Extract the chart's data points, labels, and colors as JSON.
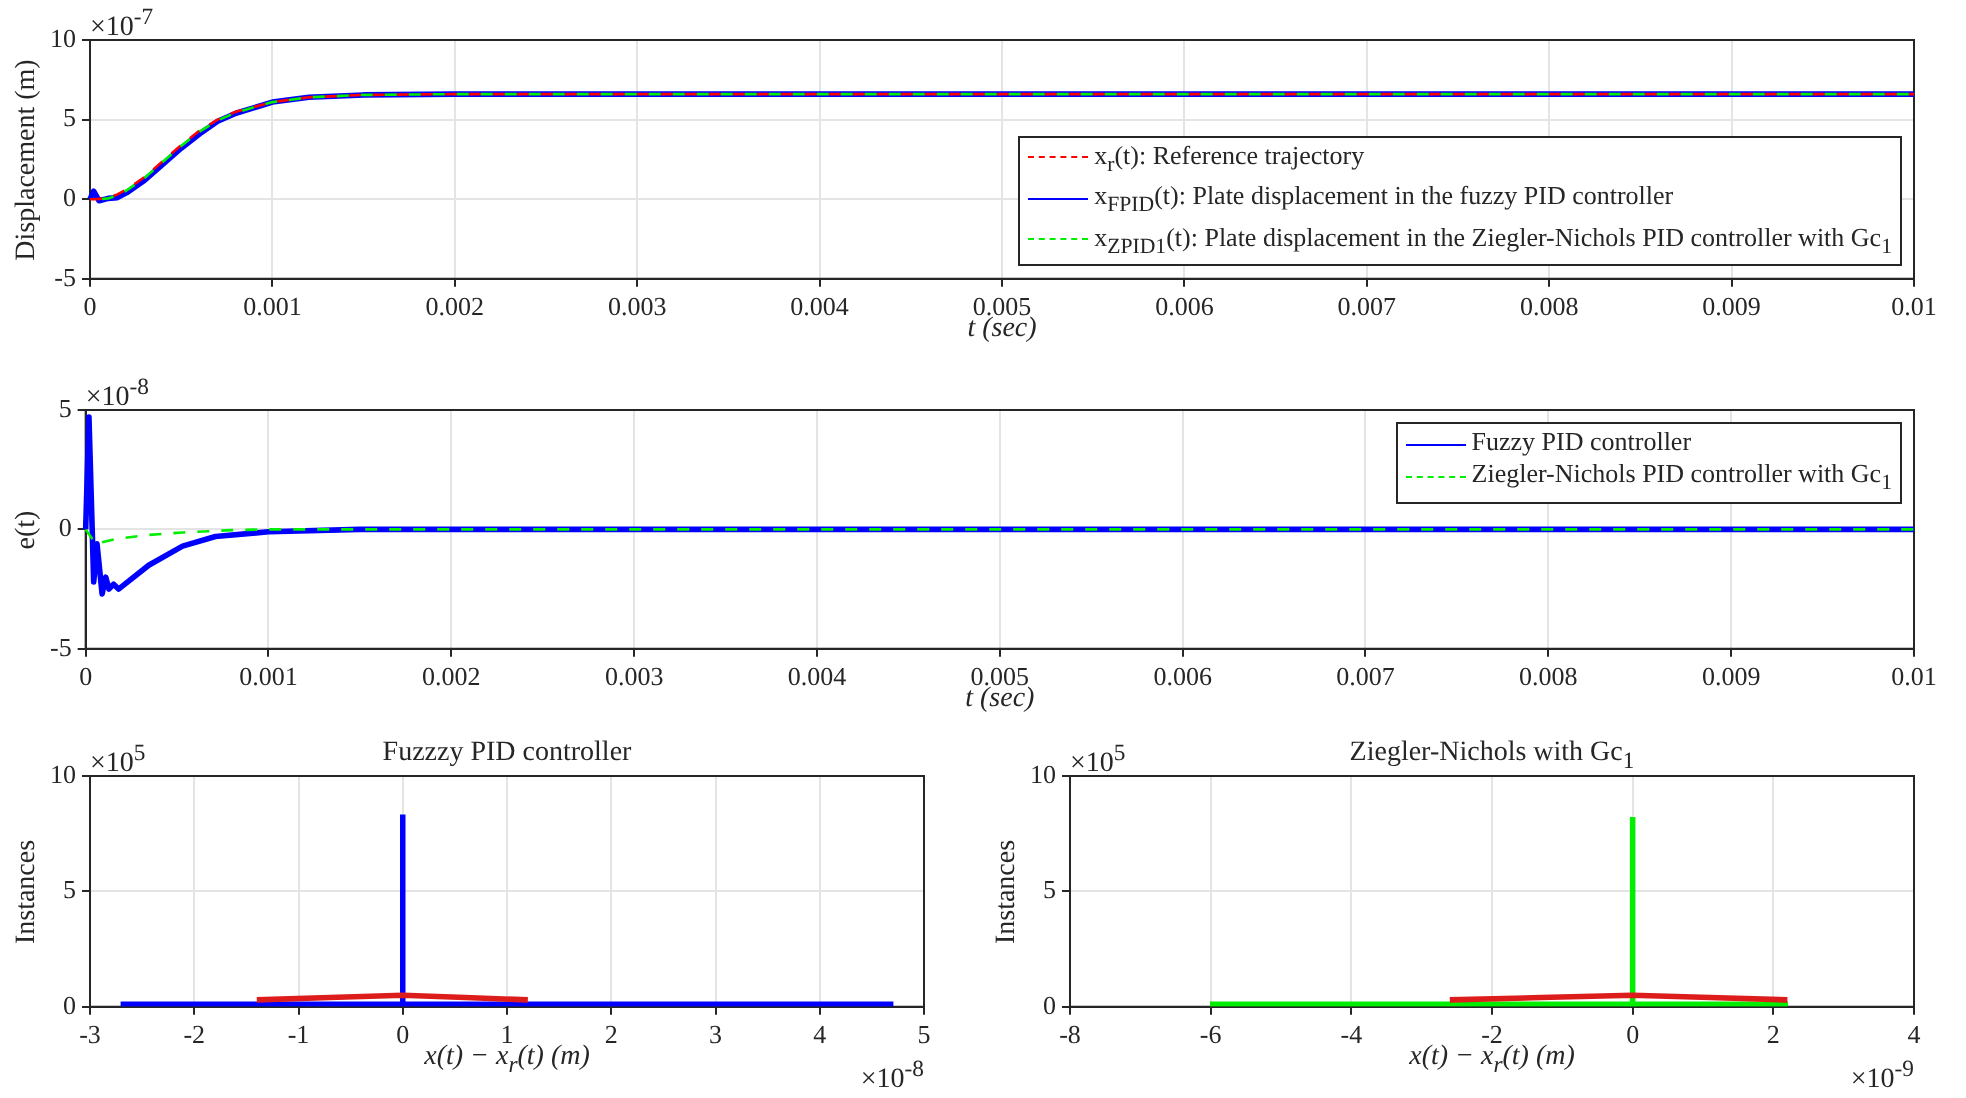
{
  "chart_data": [
    {
      "type": "line",
      "ylabel": "Displacement (m)",
      "xlabel": "t (sec)",
      "xlim": [
        0,
        0.01
      ],
      "xticks": [
        0,
        0.001,
        0.002,
        0.003,
        0.004,
        0.005,
        0.006,
        0.007,
        0.008,
        0.009,
        0.01
      ],
      "ylim": [
        -5,
        10
      ],
      "yticks": [
        -5,
        0,
        5,
        10
      ],
      "grid": true,
      "legend": "bottom right",
      "annotations": [
        "×10$^{-7}$"
      ],
      "x": [
        0,
        2e-05,
        5e-05,
        0.0001,
        0.00015,
        0.0002,
        0.0003,
        0.0004,
        0.0005,
        0.0006,
        0.0007,
        0.0008,
        0.001,
        0.0012,
        0.0015,
        0.002,
        0.003,
        0.005,
        0.01
      ],
      "series": [
        {
          "name": "x$_{r}$(t): Reference trajectory",
          "color": "#ff0000",
          "line_style": "dashed",
          "values": [
            0,
            0,
            0.02,
            0.1,
            0.3,
            0.6,
            1.4,
            2.4,
            3.4,
            4.3,
            5.0,
            5.5,
            6.1,
            6.4,
            6.55,
            6.6,
            6.6,
            6.6,
            6.6
          ]
        },
        {
          "name": "x$_{FPID}$(t): Plate displacement in the fuzzy PID controller",
          "color": "#0000ff",
          "line_style": "solid",
          "values": [
            0,
            0.5,
            -0.1,
            0.05,
            0.1,
            0.4,
            1.2,
            2.2,
            3.2,
            4.1,
            4.9,
            5.4,
            6.1,
            6.4,
            6.55,
            6.6,
            6.6,
            6.6,
            6.6
          ]
        },
        {
          "name": "x$_{ZPID1}$(t): Plate displacement in the Ziegler-Nichols PID controller with Gc$_{1}$",
          "color": "#00ee00",
          "line_style": "dashed",
          "values": [
            0,
            0,
            0,
            0.05,
            0.25,
            0.55,
            1.35,
            2.35,
            3.35,
            4.25,
            4.95,
            5.45,
            6.1,
            6.4,
            6.55,
            6.6,
            6.6,
            6.6,
            6.6
          ]
        }
      ]
    },
    {
      "type": "line",
      "ylabel": "e(t)",
      "xlabel": "t (sec)",
      "xlim": [
        0,
        0.01
      ],
      "xticks": [
        0,
        0.001,
        0.002,
        0.003,
        0.004,
        0.005,
        0.006,
        0.007,
        0.008,
        0.009,
        0.01
      ],
      "ylim": [
        -5,
        5
      ],
      "yticks": [
        -5,
        0,
        5
      ],
      "grid": true,
      "legend": "top right",
      "annotations": [
        "×10$^{-8}$"
      ],
      "series": [
        {
          "name": "Fuzzy PID controller",
          "color": "#0000ff",
          "line_style": "solid",
          "x": [
            0,
            1.8e-05,
            4.4e-05,
            6.2e-05,
            9e-05,
            0.00011,
            0.000127,
            0.000153,
            0.00018,
            0.000345,
            0.00053,
            0.00071,
            0.001,
            0.0015,
            0.01
          ],
          "values": [
            0,
            4.7,
            -2.2,
            -0.6,
            -2.7,
            -2.0,
            -2.5,
            -2.3,
            -2.5,
            -1.5,
            -0.7,
            -0.3,
            -0.1,
            0,
            0
          ]
        },
        {
          "name": "Ziegler-Nichols PID controller with Gc$_{1}$",
          "color": "#00ee00",
          "line_style": "dashed",
          "x": [
            0,
            5.5e-05,
            0.000164,
            0.000345,
            0.00053,
            0.0008,
            0.001,
            0.01
          ],
          "values": [
            0,
            -0.6,
            -0.4,
            -0.23,
            -0.13,
            -0.03,
            0,
            0
          ]
        }
      ]
    },
    {
      "type": "histogram",
      "title": "Fuzzzy PID controller",
      "ylabel": "Instances",
      "xlabel": "x(t) − x$_{r}$(t) (m)",
      "xlim": [
        -3,
        5
      ],
      "xticks": [
        -3,
        -2,
        -1,
        0,
        1,
        2,
        3,
        4,
        5
      ],
      "ylim": [
        0,
        10
      ],
      "yticks": [
        0,
        5,
        10
      ],
      "grid": true,
      "annotations": [
        "×10$^{5}$",
        "×10$^{-8}$"
      ],
      "bins": [
        -2.7,
        -0.02,
        0.02,
        4.7
      ],
      "series": [
        {
          "color": "#0000ff",
          "values": [
            0.2,
            8.3,
            0.2
          ]
        },
        {
          "type": "line",
          "color": "#dd1c1c",
          "x": [
            -1.4,
            -0.7,
            0,
            0.6,
            1.2
          ],
          "values": [
            0.3,
            0.4,
            0.5,
            0.4,
            0.3
          ]
        }
      ]
    },
    {
      "type": "histogram",
      "title": "Ziegler-Nichols with Gc$_{1}$",
      "ylabel": "Instances",
      "xlabel": "x(t) − x$_{r}$(t) (m)",
      "xlim": [
        -8,
        4
      ],
      "xticks": [
        -8,
        -6,
        -4,
        -2,
        0,
        2,
        4
      ],
      "ylim": [
        0,
        10
      ],
      "yticks": [
        0,
        5,
        10
      ],
      "grid": true,
      "annotations": [
        "×10$^{5}$",
        "×10$^{-9}$"
      ],
      "bins": [
        -6,
        -0.03,
        0.03,
        2.2
      ],
      "series": [
        {
          "color": "#00ee00",
          "values": [
            0.2,
            8.2,
            0.2
          ]
        },
        {
          "type": "line",
          "color": "#dd1c1c",
          "x": [
            -2.6,
            -1.3,
            0,
            1.1,
            2.2
          ],
          "values": [
            0.3,
            0.4,
            0.5,
            0.4,
            0.3
          ]
        }
      ]
    }
  ]
}
